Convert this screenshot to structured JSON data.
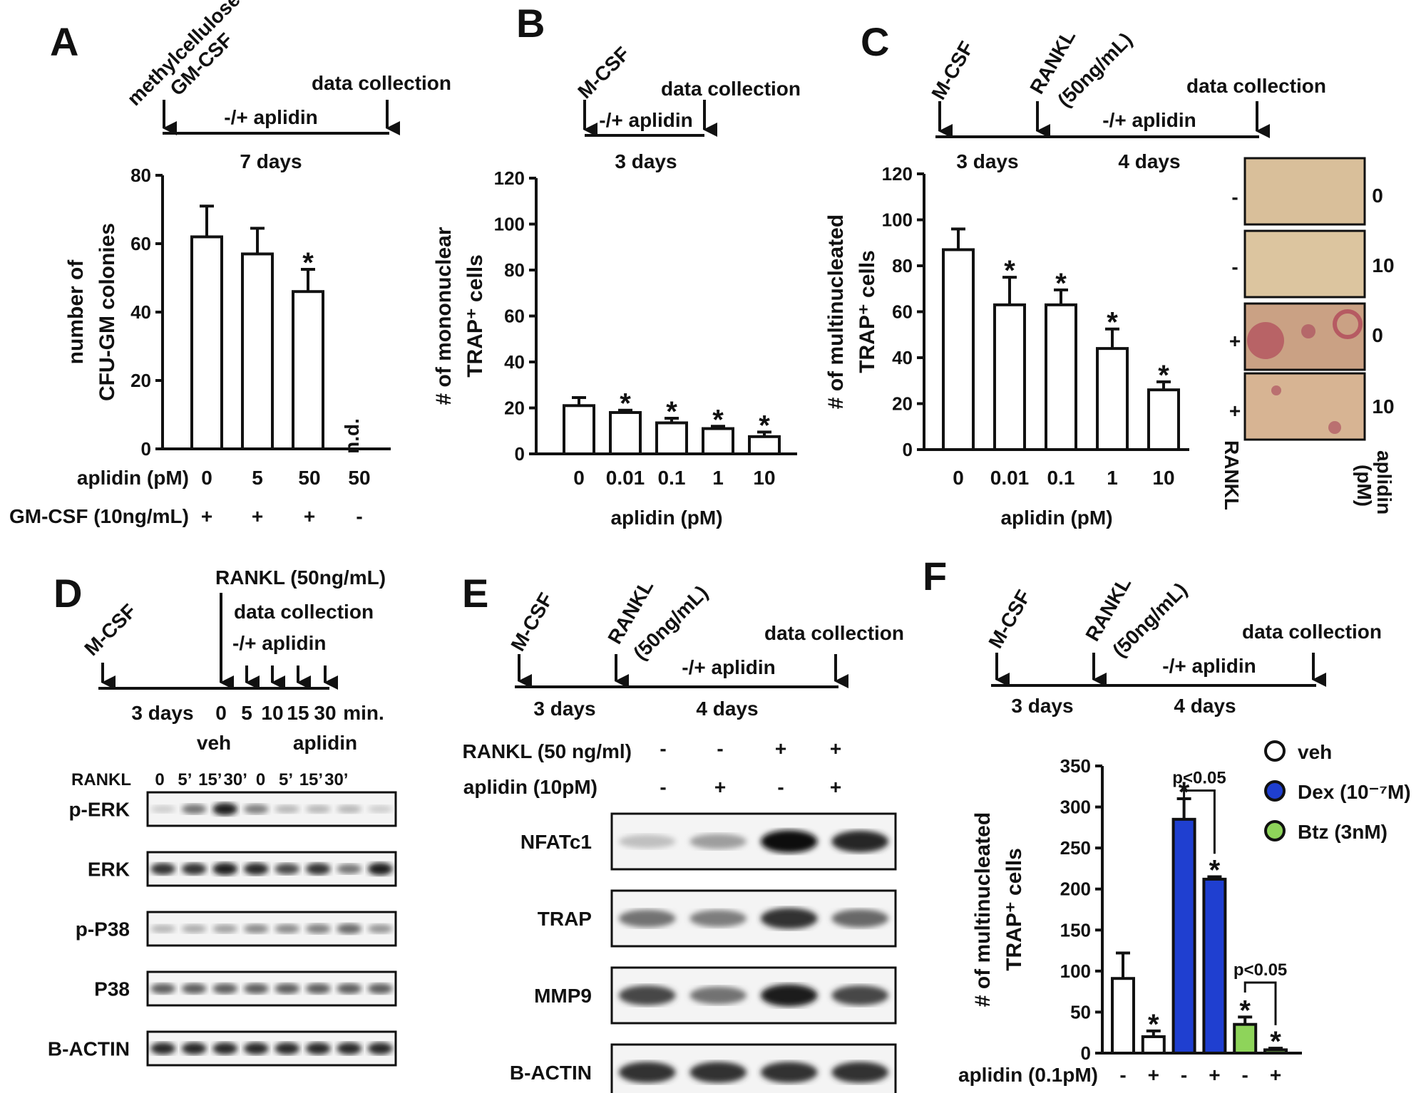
{
  "panels": {
    "A": {
      "letter": "A",
      "timeline": {
        "start_line1": "methylcellulose",
        "start_line2": "GM-CSF",
        "end": "data collection",
        "treat": "-/+ aplidin",
        "duration": "7 days"
      },
      "conditions": {
        "row1_label": "aplidin (pM)",
        "row1": [
          "0",
          "5",
          "50",
          "50"
        ],
        "row2_label": "GM-CSF (10ng/mL)",
        "row2": [
          "+",
          "+",
          "+",
          "-"
        ]
      },
      "nd_label": "n.d."
    },
    "B": {
      "letter": "B",
      "timeline": {
        "start": "M-CSF",
        "end": "data collection",
        "treat": "-/+ aplidin",
        "duration": "3 days"
      }
    },
    "C": {
      "letter": "C",
      "timeline": {
        "start": "M-CSF",
        "mid_line1": "RANKL",
        "mid_line2": "(50ng/mL)",
        "end": "data collection",
        "treat": "-/+ aplidin",
        "duration1": "3 days",
        "duration2": "4 days"
      },
      "micrographs": {
        "rankl": [
          "-",
          "-",
          "+",
          "+"
        ],
        "aplidin": [
          "0",
          "10",
          "0",
          "10"
        ],
        "rankl_label": "RANKL",
        "aplidin_label_line1": "aplidin",
        "aplidin_label_line2": "(pM)"
      }
    },
    "D": {
      "letter": "D",
      "timeline": {
        "start": "M-CSF",
        "rankl": "RANKL (50ng/mL)",
        "collect": "data collection",
        "treat": "-/+ aplidin",
        "duration": "3 days",
        "times": [
          "0",
          "5",
          "10",
          "15",
          "30"
        ],
        "unit": "min."
      },
      "group_labels": [
        "veh",
        "aplidin"
      ],
      "rankl_label": "RANKL",
      "lane_times": [
        "0",
        "5’",
        "15’",
        "30’",
        "0",
        "5’",
        "15’",
        "30’"
      ],
      "blots": [
        {
          "label": "p-ERK",
          "bands": [
            0.15,
            0.55,
            0.95,
            0.5,
            0.25,
            0.25,
            0.25,
            0.15
          ]
        },
        {
          "label": "ERK",
          "bands": [
            0.85,
            0.85,
            0.95,
            0.9,
            0.75,
            0.85,
            0.55,
            0.95
          ]
        },
        {
          "label": "p-P38",
          "bands": [
            0.25,
            0.3,
            0.35,
            0.45,
            0.45,
            0.5,
            0.6,
            0.4
          ]
        },
        {
          "label": "P38",
          "bands": [
            0.65,
            0.65,
            0.65,
            0.65,
            0.65,
            0.65,
            0.65,
            0.65
          ]
        },
        {
          "label": "B-ACTIN",
          "bands": [
            0.9,
            0.9,
            0.9,
            0.9,
            0.9,
            0.9,
            0.9,
            0.9
          ]
        }
      ]
    },
    "E": {
      "letter": "E",
      "timeline": {
        "start": "M-CSF",
        "mid_line1": "RANKL",
        "mid_line2": "(50ng/mL)",
        "end": "data collection",
        "treat": "-/+ aplidin",
        "duration1": "3 days",
        "duration2": "4 days"
      },
      "conditions": {
        "row1_label": "RANKL (50 ng/ml)",
        "row1": [
          "-",
          "-",
          "+",
          "+"
        ],
        "row2_label": "aplidin (10pM)",
        "row2": [
          "-",
          "+",
          "-",
          "+"
        ]
      },
      "blots": [
        {
          "label": "NFATc1",
          "bands": [
            0.2,
            0.35,
            1.0,
            0.9
          ]
        },
        {
          "label": "TRAP",
          "bands": [
            0.55,
            0.5,
            0.85,
            0.6
          ]
        },
        {
          "label": "MMP9",
          "bands": [
            0.75,
            0.55,
            0.95,
            0.75
          ]
        },
        {
          "label": "B-ACTIN",
          "bands": [
            0.85,
            0.85,
            0.85,
            0.85
          ]
        }
      ]
    },
    "F": {
      "letter": "F",
      "timeline": {
        "start": "M-CSF",
        "mid_line1": "RANKL",
        "mid_line2": "(50ng/mL)",
        "end": "data collection",
        "treat": "-/+ aplidin",
        "duration1": "3 days",
        "duration2": "4 days"
      },
      "legend": [
        {
          "label": "veh",
          "color": "#ffffff"
        },
        {
          "label": "Dex (10⁻⁷M)",
          "color": "#1f3fd0"
        },
        {
          "label": "Btz (3nM)",
          "color": "#8ed45a"
        }
      ],
      "conditions": {
        "row_label": "aplidin (0.1pM)",
        "row": [
          "-",
          "+",
          "-",
          "+",
          "-",
          "+"
        ]
      },
      "sig_labels": [
        "p<0.05",
        "p<0.05"
      ]
    }
  },
  "chart_data": [
    {
      "panel": "A",
      "type": "bar",
      "ylabel_line1": "number of",
      "ylabel_line2": "CFU-GM colonies",
      "ylim": [
        0,
        80
      ],
      "yticks": [
        0,
        20,
        40,
        60,
        80
      ],
      "values": [
        62,
        57,
        46,
        0
      ],
      "errors": [
        9,
        7.5,
        6.5,
        0
      ],
      "significant": [
        false,
        false,
        true,
        false
      ],
      "colors": [
        "#ffffff",
        "#ffffff",
        "#ffffff",
        "#ffffff"
      ]
    },
    {
      "panel": "B",
      "type": "bar",
      "ylabel_line1": "# of mononuclear",
      "ylabel_line2": "TRAP⁺ cells",
      "xlabel": "aplidin (pM)",
      "ylim": [
        0,
        120
      ],
      "yticks": [
        0,
        20,
        40,
        60,
        80,
        100,
        120
      ],
      "categories": [
        "0",
        "0.01",
        "0.1",
        "1",
        "10"
      ],
      "values": [
        21,
        18,
        13.5,
        11,
        7.5
      ],
      "errors": [
        3.5,
        1,
        2,
        1,
        2
      ],
      "significant": [
        false,
        true,
        true,
        true,
        true
      ],
      "colors": [
        "#ffffff",
        "#ffffff",
        "#ffffff",
        "#ffffff",
        "#ffffff"
      ]
    },
    {
      "panel": "C",
      "type": "bar",
      "ylabel_line1": "# of multinucleated",
      "ylabel_line2": "TRAP⁺ cells",
      "xlabel": "aplidin (pM)",
      "ylim": [
        0,
        120
      ],
      "yticks": [
        0,
        20,
        40,
        60,
        80,
        100,
        120
      ],
      "categories": [
        "0",
        "0.01",
        "0.1",
        "1",
        "10"
      ],
      "values": [
        87,
        63,
        63,
        44,
        26
      ],
      "errors": [
        9,
        12,
        6.5,
        8.5,
        3.5
      ],
      "significant": [
        false,
        true,
        true,
        true,
        true
      ],
      "colors": [
        "#ffffff",
        "#ffffff",
        "#ffffff",
        "#ffffff",
        "#ffffff"
      ]
    },
    {
      "panel": "F",
      "type": "bar",
      "ylabel_line1": "# of multinucleated",
      "ylabel_line2": "TRAP⁺ cells",
      "ylim": [
        0,
        350
      ],
      "yticks": [
        0,
        50,
        100,
        150,
        200,
        250,
        300,
        350
      ],
      "values": [
        91,
        20,
        285,
        212,
        35,
        4
      ],
      "errors": [
        31,
        7,
        25,
        3,
        9,
        2
      ],
      "significant": [
        false,
        true,
        true,
        true,
        true,
        true
      ],
      "colors": [
        "#ffffff",
        "#ffffff",
        "#1f3fd0",
        "#1f3fd0",
        "#8ed45a",
        "#8ed45a"
      ]
    }
  ]
}
